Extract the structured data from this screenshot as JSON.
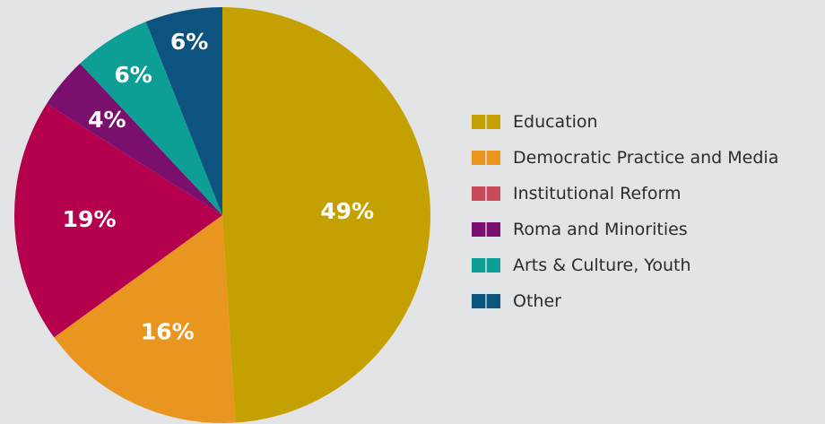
{
  "chart_data": {
    "type": "pie",
    "title": "",
    "legend_position": "right",
    "slices": [
      {
        "name": "Education",
        "value": 49,
        "label": "49%",
        "color": "#c4a000"
      },
      {
        "name": "Democratic Practice and Media",
        "value": 16,
        "label": "16%",
        "color": "#e8961f"
      },
      {
        "name": "Institutional Reform",
        "value": 19,
        "label": "19%",
        "color": "#b5004e",
        "legend_color": "#c94a5a"
      },
      {
        "name": "Roma and Minorities",
        "value": 4,
        "label": "4%",
        "color": "#7a0f6e"
      },
      {
        "name": "Arts & Culture, Youth",
        "value": 6,
        "label": "6%",
        "color": "#0d9e95"
      },
      {
        "name": "Other",
        "value": 6,
        "label": "6%",
        "color": "#0c547f"
      }
    ]
  }
}
